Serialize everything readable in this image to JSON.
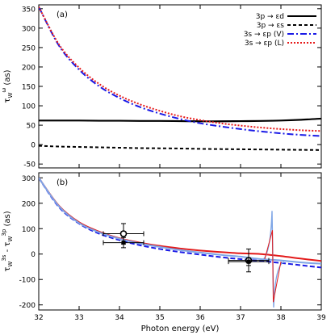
{
  "chart_data": [
    {
      "panel": "(a)",
      "type": "line",
      "ylabel_main": "τ",
      "ylabel_sub": "W",
      "ylabel_sup": "ω",
      "ylabel_unit": "(as)",
      "xlim": [
        32,
        39
      ],
      "ylim": [
        -60,
        360
      ],
      "yticks": [
        -50,
        0,
        50,
        100,
        150,
        200,
        250,
        300,
        350
      ],
      "x": [
        32,
        32.5,
        33,
        33.5,
        34,
        34.5,
        35,
        35.5,
        36,
        36.5,
        37,
        37.5,
        38,
        38.5,
        39
      ],
      "series": [
        {
          "name": "3p → εd",
          "color": "#000000",
          "dash": "solid",
          "values": [
            62,
            62,
            62,
            61.5,
            61.5,
            61,
            61,
            60.5,
            60,
            60,
            60.5,
            61,
            62,
            64,
            67
          ]
        },
        {
          "name": "3p → εs",
          "color": "#000000",
          "dash": "short",
          "values": [
            -3,
            -5,
            -6,
            -7,
            -8,
            -9,
            -9.5,
            -10,
            -11,
            -11.5,
            -12,
            -12.5,
            -13,
            -13.5,
            -14
          ]
        },
        {
          "name": "3s → εp (V)",
          "color": "#1a1ae6",
          "dash": "dashdot",
          "values": [
            355,
            255,
            193,
            150,
            120,
            97,
            80,
            66,
            55,
            47,
            40,
            34,
            29,
            25,
            22
          ]
        },
        {
          "name": "3s → εp (L)",
          "color": "#e61a1a",
          "dash": "dot",
          "values": [
            355,
            258,
            198,
            156,
            126,
            104,
            87,
            73,
            63,
            55,
            49,
            44,
            40,
            37,
            35
          ]
        }
      ]
    },
    {
      "panel": "(b)",
      "type": "line",
      "xlabel": "Photon energy (eV)",
      "ylabel_main": "τ",
      "ylabel_sub1": "W",
      "ylabel_sup1": "3s",
      "ylabel_mid": " - τ",
      "ylabel_sub2": "W",
      "ylabel_sup2": "3p",
      "ylabel_unit": " (as)",
      "xlim": [
        32,
        39
      ],
      "ylim": [
        -220,
        320
      ],
      "xticks": [
        32,
        33,
        34,
        35,
        36,
        37,
        38,
        39
      ],
      "yticks": [
        -200,
        -100,
        0,
        100,
        200,
        300
      ],
      "x": [
        32,
        32.5,
        33,
        33.5,
        34,
        34.5,
        35,
        35.5,
        36,
        36.5,
        37,
        37.5,
        38,
        38.5,
        39
      ],
      "series": [
        {
          "name": "red",
          "color": "#e31a1a",
          "dash": "solid",
          "values": [
            300,
            190,
            125,
            88,
            62,
            45,
            32,
            22,
            14,
            8,
            3,
            0,
            -8,
            -18,
            -27
          ]
        },
        {
          "name": "blue",
          "color": "#1a1ae6",
          "dash": "dashed",
          "values": [
            300,
            185,
            120,
            80,
            55,
            35,
            20,
            8,
            -2,
            -12,
            -20,
            -27,
            -35,
            -44,
            -53
          ]
        },
        {
          "name": "resonance",
          "color": "#7fa6e6",
          "dash": "solid",
          "values": [
            300,
            188,
            122,
            85,
            60,
            42,
            28,
            16,
            6,
            -3,
            -10,
            -20,
            -25,
            -33,
            -38
          ]
        }
      ],
      "resonance": {
        "x0": 37.8,
        "peak": 170,
        "trough": -210
      },
      "experiment": [
        {
          "x": 34.1,
          "y": 80,
          "xerr": 0.5,
          "yerr": 40,
          "marker": "circle"
        },
        {
          "x": 34.1,
          "y": 45,
          "xerr": 0.5,
          "yerr": 20,
          "marker": "square"
        },
        {
          "x": 37.2,
          "y": -25,
          "xerr": 0.5,
          "yerr": 45,
          "marker": "circle"
        },
        {
          "x": 37.2,
          "y": -30,
          "xerr": 0.5,
          "yerr": 15,
          "marker": "square"
        }
      ]
    }
  ]
}
